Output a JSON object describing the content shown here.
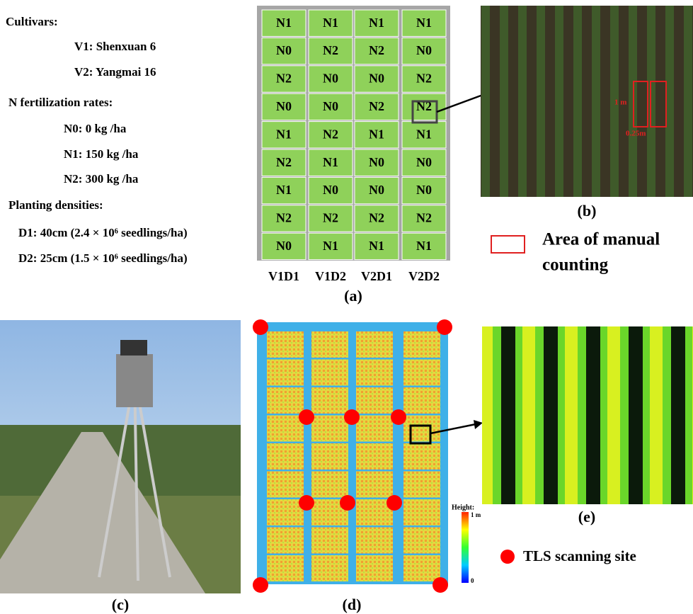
{
  "legend_text": {
    "cultivars_title": "Cultivars:",
    "v1": "V1: Shenxuan 6",
    "v2": "V2: Yangmai 16",
    "n_title": "N fertilization rates:",
    "n0": "N0: 0 kg /ha",
    "n1": "N1: 150 kg /ha",
    "n2": "N2: 300 kg /ha",
    "d_title": "Planting densities:",
    "d1": "D1: 40cm (2.4 × 10⁶ seedlings/ha)",
    "d2": "D2: 25cm (1.5 × 10⁶ seedlings/ha)"
  },
  "grid": {
    "rows": [
      [
        "N1",
        "N1",
        "N1",
        "N1"
      ],
      [
        "N0",
        "N2",
        "N2",
        "N0"
      ],
      [
        "N2",
        "N0",
        "N0",
        "N2"
      ],
      [
        "N0",
        "N0",
        "N2",
        "N2"
      ],
      [
        "N1",
        "N2",
        "N1",
        "N1"
      ],
      [
        "N2",
        "N1",
        "N0",
        "N0"
      ],
      [
        "N1",
        "N0",
        "N0",
        "N0"
      ],
      [
        "N2",
        "N2",
        "N2",
        "N2"
      ],
      [
        "N0",
        "N1",
        "N1",
        "N1"
      ]
    ],
    "columns": [
      "V1D1",
      "V1D2",
      "V2D1",
      "V2D2"
    ]
  },
  "panel_labels": {
    "a": "(a)",
    "b": "(b)",
    "c": "(c)",
    "d": "(d)",
    "e": "(e)"
  },
  "photo_b": {
    "height_label": "1 m",
    "width_label": "0.25m"
  },
  "manual_legend": {
    "line1": "Area of manual",
    "line2": "counting"
  },
  "colorbar": {
    "title": "Height:",
    "max": "1 m",
    "min": "0"
  },
  "tls_legend": "TLS scanning site"
}
